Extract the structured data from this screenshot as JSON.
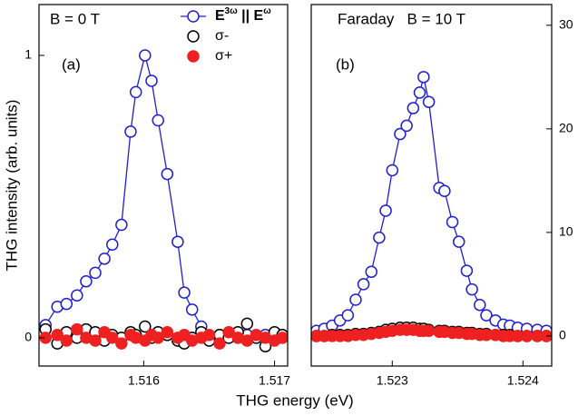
{
  "chart_data": [
    {
      "type": "scatter",
      "xlabel": "THG energy (eV)",
      "ylabel": "THG intensity (arb. units)",
      "annotations": [
        "B = 0 T",
        "(a)"
      ],
      "legend": "upper right",
      "yaxis_side": "left",
      "xlim": [
        1.5152,
        1.5171
      ],
      "ylim": [
        -0.1,
        1.18
      ],
      "xticks": [
        1.516,
        1.517
      ],
      "yticks": [
        0,
        1
      ],
      "series": [
        {
          "name": "E3ω || Eω",
          "color": "#1f1fd0",
          "filled": false,
          "line": true,
          "x": [
            1.51525,
            1.51534,
            1.51541,
            1.51549,
            1.51556,
            1.51563,
            1.5157,
            1.51576,
            1.51583,
            1.5159,
            1.51594,
            1.51601,
            1.51606,
            1.51611,
            1.51618,
            1.51626,
            1.51631,
            1.51637,
            1.51644,
            1.5165,
            1.51658,
            1.51665,
            1.51672,
            1.51679,
            1.51686,
            1.51693,
            1.517,
            1.51706
          ],
          "values": [
            0.045,
            0.11,
            0.12,
            0.15,
            0.2,
            0.23,
            0.28,
            0.33,
            0.4,
            0.73,
            0.87,
            1.0,
            0.91,
            0.77,
            0.58,
            0.34,
            0.16,
            0.1,
            0.04,
            0.0,
            0.01,
            0.0,
            0.0,
            0.01,
            0.0,
            0.01,
            0.0,
            0.0
          ]
        },
        {
          "name": "σ-",
          "color": "#000000",
          "filled": false,
          "line": false,
          "x": [
            1.51525,
            1.51534,
            1.51541,
            1.51549,
            1.51556,
            1.51563,
            1.5157,
            1.51576,
            1.51583,
            1.5159,
            1.51594,
            1.51601,
            1.51606,
            1.51611,
            1.51618,
            1.51626,
            1.51631,
            1.51637,
            1.51644,
            1.5165,
            1.51658,
            1.51665,
            1.51672,
            1.51679,
            1.51686,
            1.51693,
            1.517,
            1.51706
          ],
          "values": [
            0.03,
            -0.02,
            0.02,
            0.0,
            0.03,
            0.02,
            -0.01,
            0.01,
            0.0,
            0.02,
            0.01,
            0.04,
            0.0,
            0.02,
            0.01,
            -0.01,
            -0.02,
            0.0,
            0.02,
            -0.01,
            0.01,
            0.0,
            0.02,
            0.05,
            0.0,
            -0.03,
            0.02,
            0.01
          ]
        },
        {
          "name": "σ+",
          "color": "#ee2020",
          "filled": true,
          "line": false,
          "x": [
            1.51525,
            1.51534,
            1.51541,
            1.51549,
            1.51556,
            1.51563,
            1.5157,
            1.51576,
            1.51583,
            1.5159,
            1.51594,
            1.51601,
            1.51606,
            1.51611,
            1.51618,
            1.51626,
            1.51631,
            1.51637,
            1.51644,
            1.5165,
            1.51658,
            1.51665,
            1.51672,
            1.51679,
            1.51686,
            1.51693,
            1.517,
            1.51706
          ],
          "values": [
            0.0,
            0.01,
            -0.01,
            0.03,
            0.0,
            -0.01,
            0.02,
            0.0,
            -0.02,
            0.01,
            0.0,
            -0.01,
            0.01,
            0.0,
            0.02,
            0.0,
            0.01,
            -0.01,
            0.0,
            0.01,
            -0.02,
            0.02,
            0.0,
            -0.01,
            0.01,
            0.0,
            -0.01,
            0.0
          ]
        }
      ]
    },
    {
      "type": "scatter",
      "annotations": [
        "Faraday   B = 10 T",
        "(b)"
      ],
      "yaxis_side": "right",
      "xlim": [
        1.52238,
        1.52422
      ],
      "ylim": [
        -2.9,
        32
      ],
      "xticks": [
        1.523,
        1.524
      ],
      "yticks": [
        0,
        10,
        20,
        30
      ],
      "series": [
        {
          "color": "#1f1fd0",
          "filled": false,
          "line": true,
          "x": [
            1.52242,
            1.52248,
            1.52254,
            1.5226,
            1.52266,
            1.52272,
            1.52278,
            1.52284,
            1.5229,
            1.52295,
            1.523,
            1.52306,
            1.52311,
            1.52316,
            1.52321,
            1.52324,
            1.52328,
            1.52336,
            1.5234,
            1.52346,
            1.52351,
            1.52357,
            1.52361,
            1.52367,
            1.52372,
            1.52379,
            1.52385,
            1.5239,
            1.52396,
            1.52403,
            1.52411,
            1.52418
          ],
          "values": [
            0.5,
            0.7,
            1.0,
            1.5,
            2.0,
            3.5,
            5.0,
            6.2,
            9.5,
            12.1,
            16.0,
            19.5,
            20.3,
            22.0,
            23.5,
            25.0,
            22.6,
            14.3,
            14.0,
            11.0,
            9.1,
            6.3,
            4.5,
            3.0,
            2.0,
            1.5,
            1.1,
            1.0,
            0.8,
            0.7,
            0.6,
            0.5
          ]
        },
        {
          "color": "#000000",
          "filled": false,
          "line": false,
          "x": [
            1.52242,
            1.52248,
            1.52254,
            1.5226,
            1.52266,
            1.52272,
            1.52278,
            1.52284,
            1.5229,
            1.52295,
            1.523,
            1.52306,
            1.52311,
            1.52316,
            1.52321,
            1.52324,
            1.52328,
            1.52336,
            1.5234,
            1.52346,
            1.52351,
            1.52357,
            1.52361,
            1.52367,
            1.52372,
            1.52379,
            1.52385,
            1.5239,
            1.52396,
            1.52403,
            1.52411,
            1.52418
          ],
          "values": [
            0.0,
            0.0,
            0.1,
            0.1,
            0.1,
            0.2,
            0.2,
            0.3,
            0.4,
            0.6,
            0.7,
            0.8,
            0.8,
            0.8,
            0.7,
            0.7,
            0.6,
            0.5,
            0.5,
            0.4,
            0.4,
            0.3,
            0.3,
            0.2,
            0.2,
            0.1,
            0.1,
            0.1,
            0.0,
            0.0,
            0.0,
            0.0
          ]
        },
        {
          "color": "#ee2020",
          "filled": true,
          "line": false,
          "x": [
            1.52242,
            1.52248,
            1.52254,
            1.5226,
            1.52266,
            1.52272,
            1.52278,
            1.52284,
            1.5229,
            1.52295,
            1.523,
            1.52306,
            1.52311,
            1.52316,
            1.52321,
            1.52324,
            1.52328,
            1.52336,
            1.5234,
            1.52346,
            1.52351,
            1.52357,
            1.52361,
            1.52367,
            1.52372,
            1.52379,
            1.52385,
            1.5239,
            1.52396,
            1.52403,
            1.52411,
            1.52418
          ],
          "values": [
            0.0,
            0.0,
            0.0,
            0.0,
            0.0,
            0.1,
            0.1,
            0.2,
            0.3,
            0.4,
            0.5,
            0.6,
            0.6,
            0.6,
            0.5,
            0.5,
            0.5,
            0.4,
            0.4,
            0.3,
            0.3,
            0.2,
            0.2,
            0.1,
            0.1,
            0.1,
            0.0,
            0.0,
            0.0,
            0.0,
            0.0,
            0.0
          ]
        }
      ]
    }
  ]
}
